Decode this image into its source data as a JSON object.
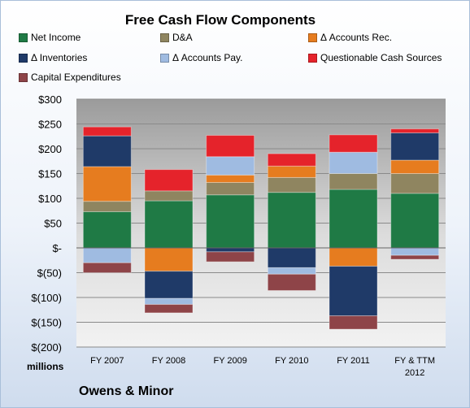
{
  "chart_data": {
    "type": "bar",
    "stacked": true,
    "title": "Free Cash Flow Components",
    "units_label": "millions",
    "categories": [
      "FY 2007",
      "FY 2008",
      "FY 2009",
      "FY 2010",
      "FY 2011",
      "FY & TTM 2012"
    ],
    "ylim": [
      -200,
      300
    ],
    "yticks": [
      300,
      250,
      200,
      150,
      100,
      50,
      0,
      -50,
      -100,
      -150,
      -200
    ],
    "ytick_labels": [
      "$300",
      "$250",
      "$200",
      "$150",
      "$100",
      "$50",
      "$-",
      "$(50)",
      "$(100)",
      "$(150)",
      "$(200)"
    ],
    "grid": true,
    "legend_position": "top",
    "series": [
      {
        "name": "Net Income",
        "color": "#1f7a45",
        "values": [
          73,
          95,
          107,
          112,
          118,
          110
        ]
      },
      {
        "name": "D&A",
        "color": "#8f8560",
        "values": [
          21,
          20,
          25,
          30,
          32,
          40
        ]
      },
      {
        "name": "Δ Accounts Rec.",
        "color": "#e67c1f",
        "values": [
          70,
          -47,
          15,
          23,
          -37,
          27
        ]
      },
      {
        "name": "Δ Inventories",
        "color": "#1f3a68",
        "values": [
          62,
          -55,
          -8,
          -40,
          -100,
          55
        ]
      },
      {
        "name": "Δ Accounts Pay.",
        "color": "#9fbbe1",
        "values": [
          -30,
          -12,
          37,
          -13,
          43,
          -15
        ]
      },
      {
        "name": "Questionable Cash Sources",
        "color": "#e5232b",
        "values": [
          18,
          43,
          43,
          25,
          35,
          8
        ]
      },
      {
        "name": "Capital Expenditures",
        "color": "#8e4448",
        "values": [
          -20,
          -17,
          -20,
          -33,
          -27,
          -8
        ]
      }
    ]
  },
  "footer": {
    "company": "Owens & Minor"
  }
}
